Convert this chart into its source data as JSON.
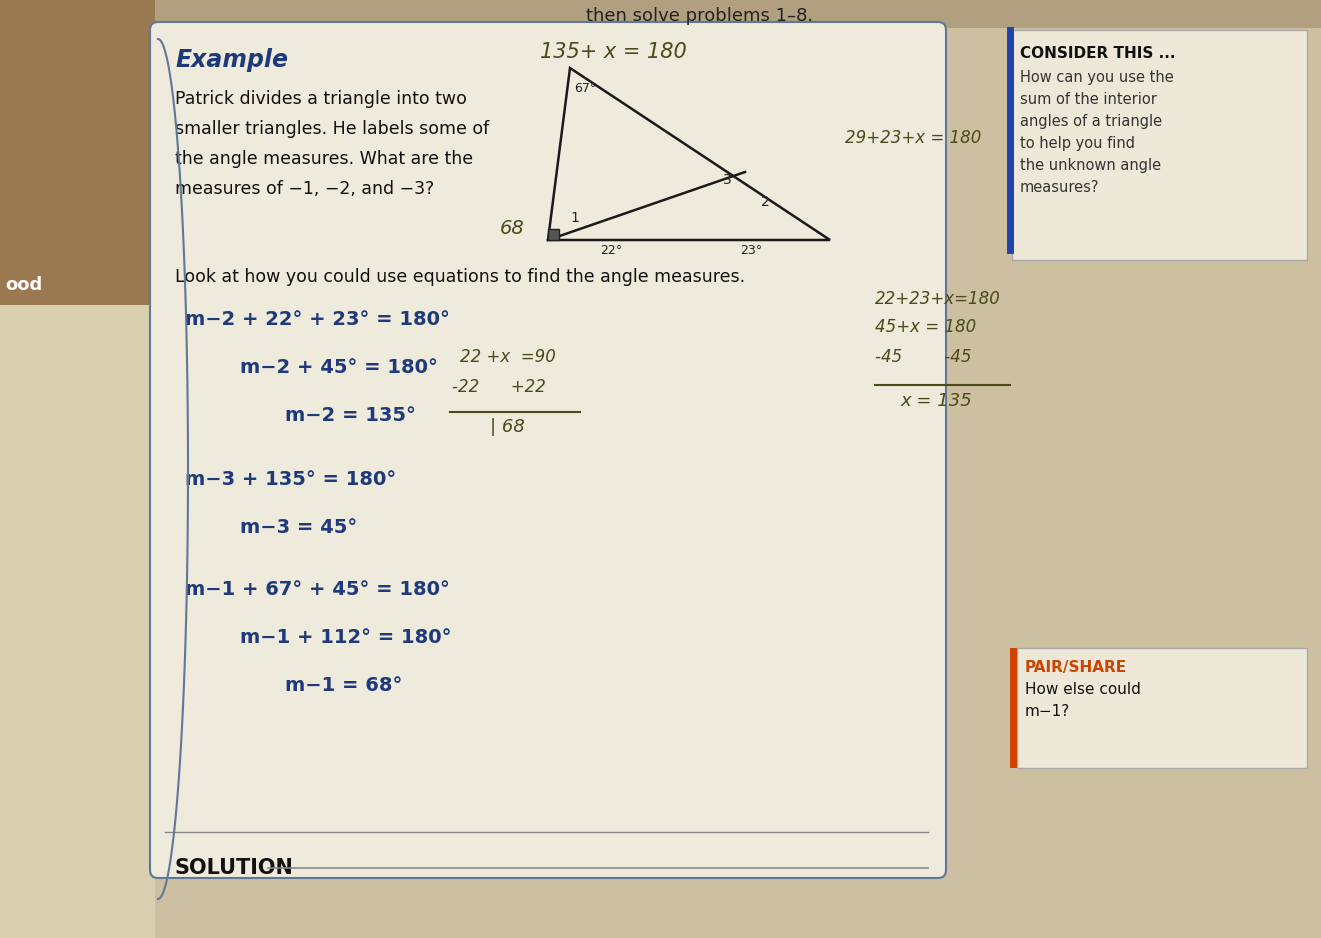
{
  "bg_color_top": "#c8b078",
  "bg_color_main": "#d8cfa8",
  "page_color": "#e8e0c8",
  "main_box_color": "#ece8d8",
  "title_top": "then solve problems 1–8.",
  "example_label": "Example",
  "problem_text_lines": [
    "Patrick divides a triangle into two",
    "smaller triangles. He labels some of",
    "the angle measures. What are the",
    "measures of −1, −2, and −3?"
  ],
  "look_text": "Look at how you could use equations to find the angle measures.",
  "equations": [
    [
      "m−2 + 22° + 23° = 180°",
      0
    ],
    [
      "m−2 + 45° = 180°",
      55
    ],
    [
      "m−2 = 135°",
      100
    ],
    [
      "m−3 + 135° = 180°",
      0
    ],
    [
      "m−3 = 45°",
      55
    ],
    [
      "m−1 + 67° + 45° = 180°",
      0
    ],
    [
      "m−1 + 112° = 180°",
      55
    ],
    [
      "m−1 = 68°",
      100
    ]
  ],
  "solution_label": "SOLUTION",
  "consider_title": "CONSIDER THIS ...",
  "consider_lines": [
    "How can you use the",
    "sum of the interior",
    "angles of a triangle",
    "to help you find",
    "the unknown angle",
    "measures?"
  ],
  "pair_share_title": "PAIR/SHARE",
  "pair_share_lines": [
    "How else could",
    "m−1?"
  ],
  "hw_top": "135+ x = 180",
  "hw_side": "29+23+x = 180",
  "hw_mid1": "22 +x  =90",
  "hw_mid2": "-22      +22",
  "hw_mid3": "| 68",
  "hw_right1": "45+x = 180",
  "hw_right2": "-45        -45",
  "hw_right3": "x = 135",
  "hw_68": "68",
  "eq_color": "#1e3a7a",
  "pair_color": "#cc4400",
  "consider_border": "#2244aa",
  "tri_color": "#1a1a1a"
}
